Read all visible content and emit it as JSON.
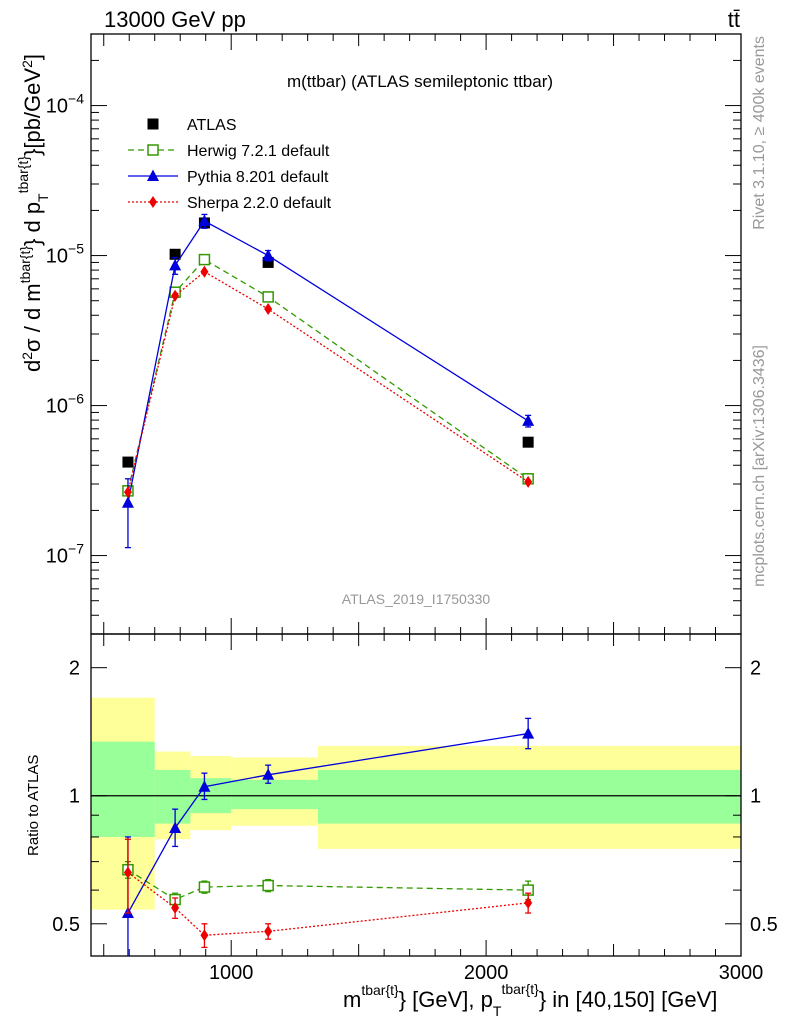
{
  "header": {
    "left": "13000 GeV pp",
    "right": "tt̄"
  },
  "side_labels": {
    "rivet": "Rivet 3.1.10, ≥ 400k events",
    "source": "mcplots.cern.ch [arXiv:1306.3436]"
  },
  "plot_title": "m(ttbar) (ATLAS semileptonic ttbar)",
  "watermark": "ATLAS_2019_I1750330",
  "axis_labels": {
    "main_y": "d²σ / d m^{tbar{t}} d p_T^{tbar{t}} [pb/GeV²]",
    "ratio_y": "Ratio to ATLAS",
    "x": "m^{tbar{t}} [GeV], p_T^{tbar{t}} in [40,150] [GeV]"
  },
  "legend": [
    {
      "label": "ATLAS",
      "key": "atlas"
    },
    {
      "label": "Herwig 7.2.1 default",
      "key": "herwig"
    },
    {
      "label": "Pythia 8.201 default",
      "key": "pythia"
    },
    {
      "label": "Sherpa 2.2.0 default",
      "key": "sherpa"
    }
  ],
  "colors": {
    "atlas": "#000000",
    "herwig": "#339900",
    "pythia": "#0000dd",
    "sherpa": "#ee0000",
    "band_inner": "#99ff99",
    "band_outer": "#ffff99"
  },
  "chart_data": {
    "type": "scatter",
    "x_range": [
      450,
      3000
    ],
    "x_ticks": [
      1000,
      2000,
      3000
    ],
    "main_y_log": true,
    "main_y_range": [
      3e-08,
      0.0003
    ],
    "main_y_ticks": [
      {
        "v": 1e-07,
        "label": "10",
        "exp": "−7"
      },
      {
        "v": 1e-06,
        "label": "10",
        "exp": "−6"
      },
      {
        "v": 1e-05,
        "label": "10",
        "exp": "−5"
      },
      {
        "v": 0.0001,
        "label": "10",
        "exp": "−4"
      }
    ],
    "ratio_y_log": true,
    "ratio_y_range": [
      0.42,
      2.4
    ],
    "ratio_y_ticks": [
      0.5,
      1,
      2
    ],
    "bins": [
      [
        450,
        700
      ],
      [
        700,
        840
      ],
      [
        840,
        1000
      ],
      [
        1000,
        1340
      ],
      [
        1340,
        3000
      ]
    ],
    "x": [
      595,
      780,
      895,
      1145,
      2165
    ],
    "series": [
      {
        "name": "ATLAS",
        "key": "atlas",
        "marker": "square-filled",
        "line": "none",
        "values": [
          4.2e-07,
          1.02e-05,
          1.65e-05,
          9e-06,
          5.7e-07
        ],
        "err": [
          0,
          0,
          0,
          0,
          0
        ]
      },
      {
        "name": "Herwig 7.2.1 default",
        "key": "herwig",
        "marker": "square-open",
        "line": "dashed",
        "values": [
          2.7e-07,
          5.7e-06,
          9.4e-06,
          5.3e-06,
          3.25e-07
        ],
        "ratio": [
          0.67,
          0.57,
          0.61,
          0.615,
          0.6
        ],
        "ratio_err": [
          0.03,
          0.02,
          0.02,
          0.02,
          0.03
        ]
      },
      {
        "name": "Pythia 8.201 default",
        "key": "pythia",
        "marker": "triangle-filled",
        "line": "solid",
        "values": [
          2.25e-07,
          8.6e-06,
          1.7e-05,
          1e-05,
          7.9e-07
        ],
        "err_lo": [
          1.12e-07,
          1.1e-06,
          1.8e-06,
          8e-07,
          7e-08
        ],
        "err_hi": [
          1e-07,
          1.1e-06,
          1.8e-06,
          8e-07,
          7e-08
        ],
        "ratio": [
          0.53,
          0.84,
          1.05,
          1.12,
          1.4
        ],
        "ratio_lo": [
          0.3,
          0.76,
          0.98,
          1.07,
          1.29
        ],
        "ratio_hi": [
          0.8,
          0.93,
          1.13,
          1.18,
          1.52
        ]
      },
      {
        "name": "Sherpa 2.2.0 default",
        "key": "sherpa",
        "marker": "diamond-filled",
        "line": "dotted",
        "values": [
          2.65e-07,
          5.4e-06,
          7.8e-06,
          4.4e-06,
          3.1e-07
        ],
        "ratio": [
          0.66,
          0.545,
          0.47,
          0.48,
          0.56
        ],
        "ratio_err": [
          0.13,
          0.03,
          0.03,
          0.02,
          0.03
        ]
      }
    ],
    "atlas_band": {
      "inner": [
        [
          0.8,
          1.34
        ],
        [
          0.86,
          1.15
        ],
        [
          0.91,
          1.1
        ],
        [
          0.93,
          1.09
        ],
        [
          0.86,
          1.15
        ]
      ],
      "outer": [
        [
          0.54,
          1.7
        ],
        [
          0.79,
          1.27
        ],
        [
          0.83,
          1.24
        ],
        [
          0.85,
          1.23
        ],
        [
          0.75,
          1.31
        ]
      ]
    }
  }
}
